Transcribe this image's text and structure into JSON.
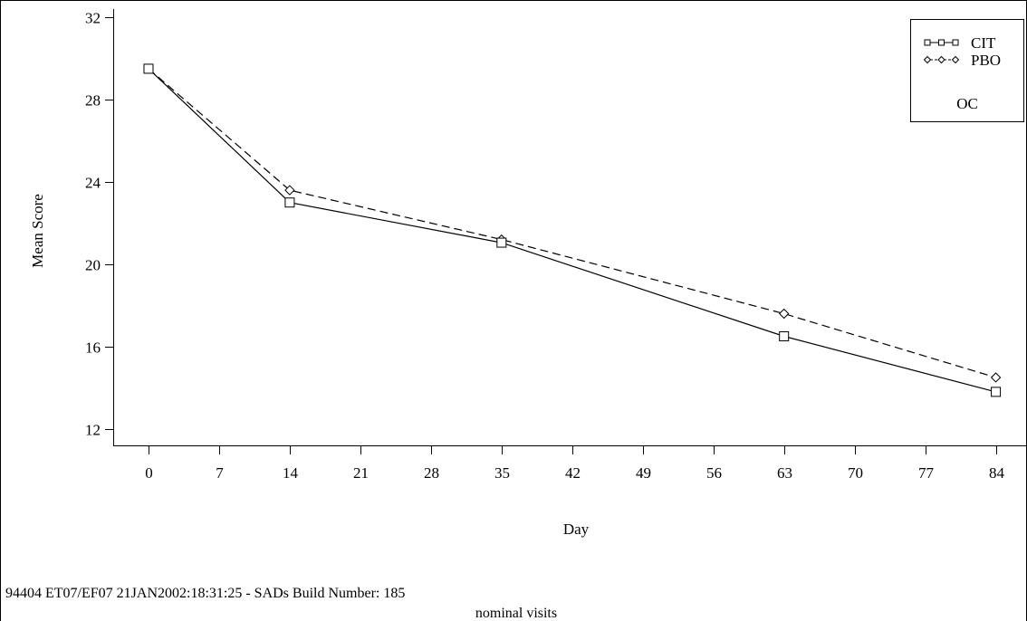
{
  "chart_data": {
    "type": "line",
    "title": "",
    "xlabel": "Day",
    "ylabel": "Mean Score",
    "x": [
      0,
      14,
      35,
      63,
      84
    ],
    "x_ticks": [
      0,
      7,
      14,
      21,
      28,
      35,
      42,
      49,
      56,
      63,
      70,
      77,
      84
    ],
    "y_ticks": [
      12,
      16,
      20,
      24,
      28,
      32
    ],
    "xlim": [
      -3.5,
      87
    ],
    "ylim": [
      11.2,
      32.4
    ],
    "grid": false,
    "legend_position": "top-right",
    "legend_note": "OC",
    "series": [
      {
        "name": "CIT",
        "marker": "square",
        "line_style": "solid",
        "color": "#000000",
        "values": [
          29.5,
          23.0,
          21.05,
          16.5,
          13.8
        ]
      },
      {
        "name": "PBO",
        "marker": "diamond",
        "line_style": "dashed",
        "color": "#000000",
        "values": [
          29.5,
          23.6,
          21.2,
          17.6,
          14.5
        ]
      }
    ]
  },
  "footer": {
    "build_line": "94404 ET07/EF07 21JAN2002:18:31:25  - SADs Build Number: 185",
    "caption": "nominal visits"
  }
}
